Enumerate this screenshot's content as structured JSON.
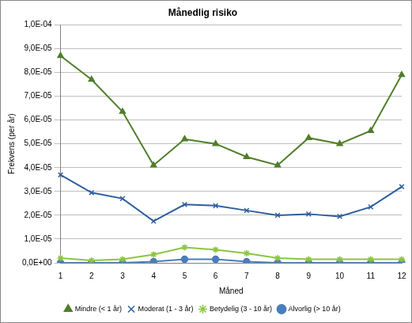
{
  "chart_data": {
    "type": "line",
    "title": "Månedlig risiko",
    "x_label": "Måned",
    "y_label": "Frekvens (per år)",
    "categories": [
      "1",
      "2",
      "3",
      "4",
      "5",
      "6",
      "7",
      "8",
      "9",
      "10",
      "11",
      "12"
    ],
    "ylim": [
      0,
      0.0001
    ],
    "yticks": [
      {
        "value": 0,
        "label": "0,0E+00"
      },
      {
        "value": 1e-05,
        "label": "1,0E-05"
      },
      {
        "value": 2e-05,
        "label": "2,0E-05"
      },
      {
        "value": 3e-05,
        "label": "3,0E-05"
      },
      {
        "value": 4e-05,
        "label": "4,0E-05"
      },
      {
        "value": 5e-05,
        "label": "5,0E-05"
      },
      {
        "value": 6e-05,
        "label": "6,0E-05"
      },
      {
        "value": 7e-05,
        "label": "7,0E-05"
      },
      {
        "value": 8e-05,
        "label": "8,0E-05"
      },
      {
        "value": 9e-05,
        "label": "9,0E-05"
      },
      {
        "value": 0.0001,
        "label": "1,0E-04"
      }
    ],
    "grid": true,
    "legend": "bottom",
    "series": [
      {
        "name": "Mindre (< 1 år)",
        "color": "#4f7f2a",
        "marker": "triangle",
        "values": [
          8.7e-05,
          7.7e-05,
          6.35e-05,
          4.1e-05,
          5.2e-05,
          5e-05,
          4.45e-05,
          4.1e-05,
          5.25e-05,
          5e-05,
          5.55e-05,
          7.9e-05
        ]
      },
      {
        "name": "Moderat (1 - 3 år)",
        "color": "#2f5e9e",
        "marker": "x",
        "values": [
          3.7e-05,
          2.95e-05,
          2.7e-05,
          1.75e-05,
          2.45e-05,
          2.4e-05,
          2.2e-05,
          2e-05,
          2.05e-05,
          1.95e-05,
          2.35e-05,
          3.2e-05
        ]
      },
      {
        "name": "Betydelig (3 - 10 år)",
        "color": "#8cc63f",
        "marker": "star",
        "values": [
          2e-06,
          1e-06,
          1.5e-06,
          3.5e-06,
          6.5e-06,
          5.5e-06,
          4e-06,
          2e-06,
          1.5e-06,
          1.5e-06,
          1.5e-06,
          1.5e-06
        ]
      },
      {
        "name": "Alvorlig (> 10 år)",
        "color": "#4a7ebb",
        "marker": "circle",
        "values": [
          0,
          0,
          0,
          5e-07,
          1.5e-06,
          1.5e-06,
          5e-07,
          0,
          0,
          0,
          0,
          0
        ]
      }
    ]
  }
}
